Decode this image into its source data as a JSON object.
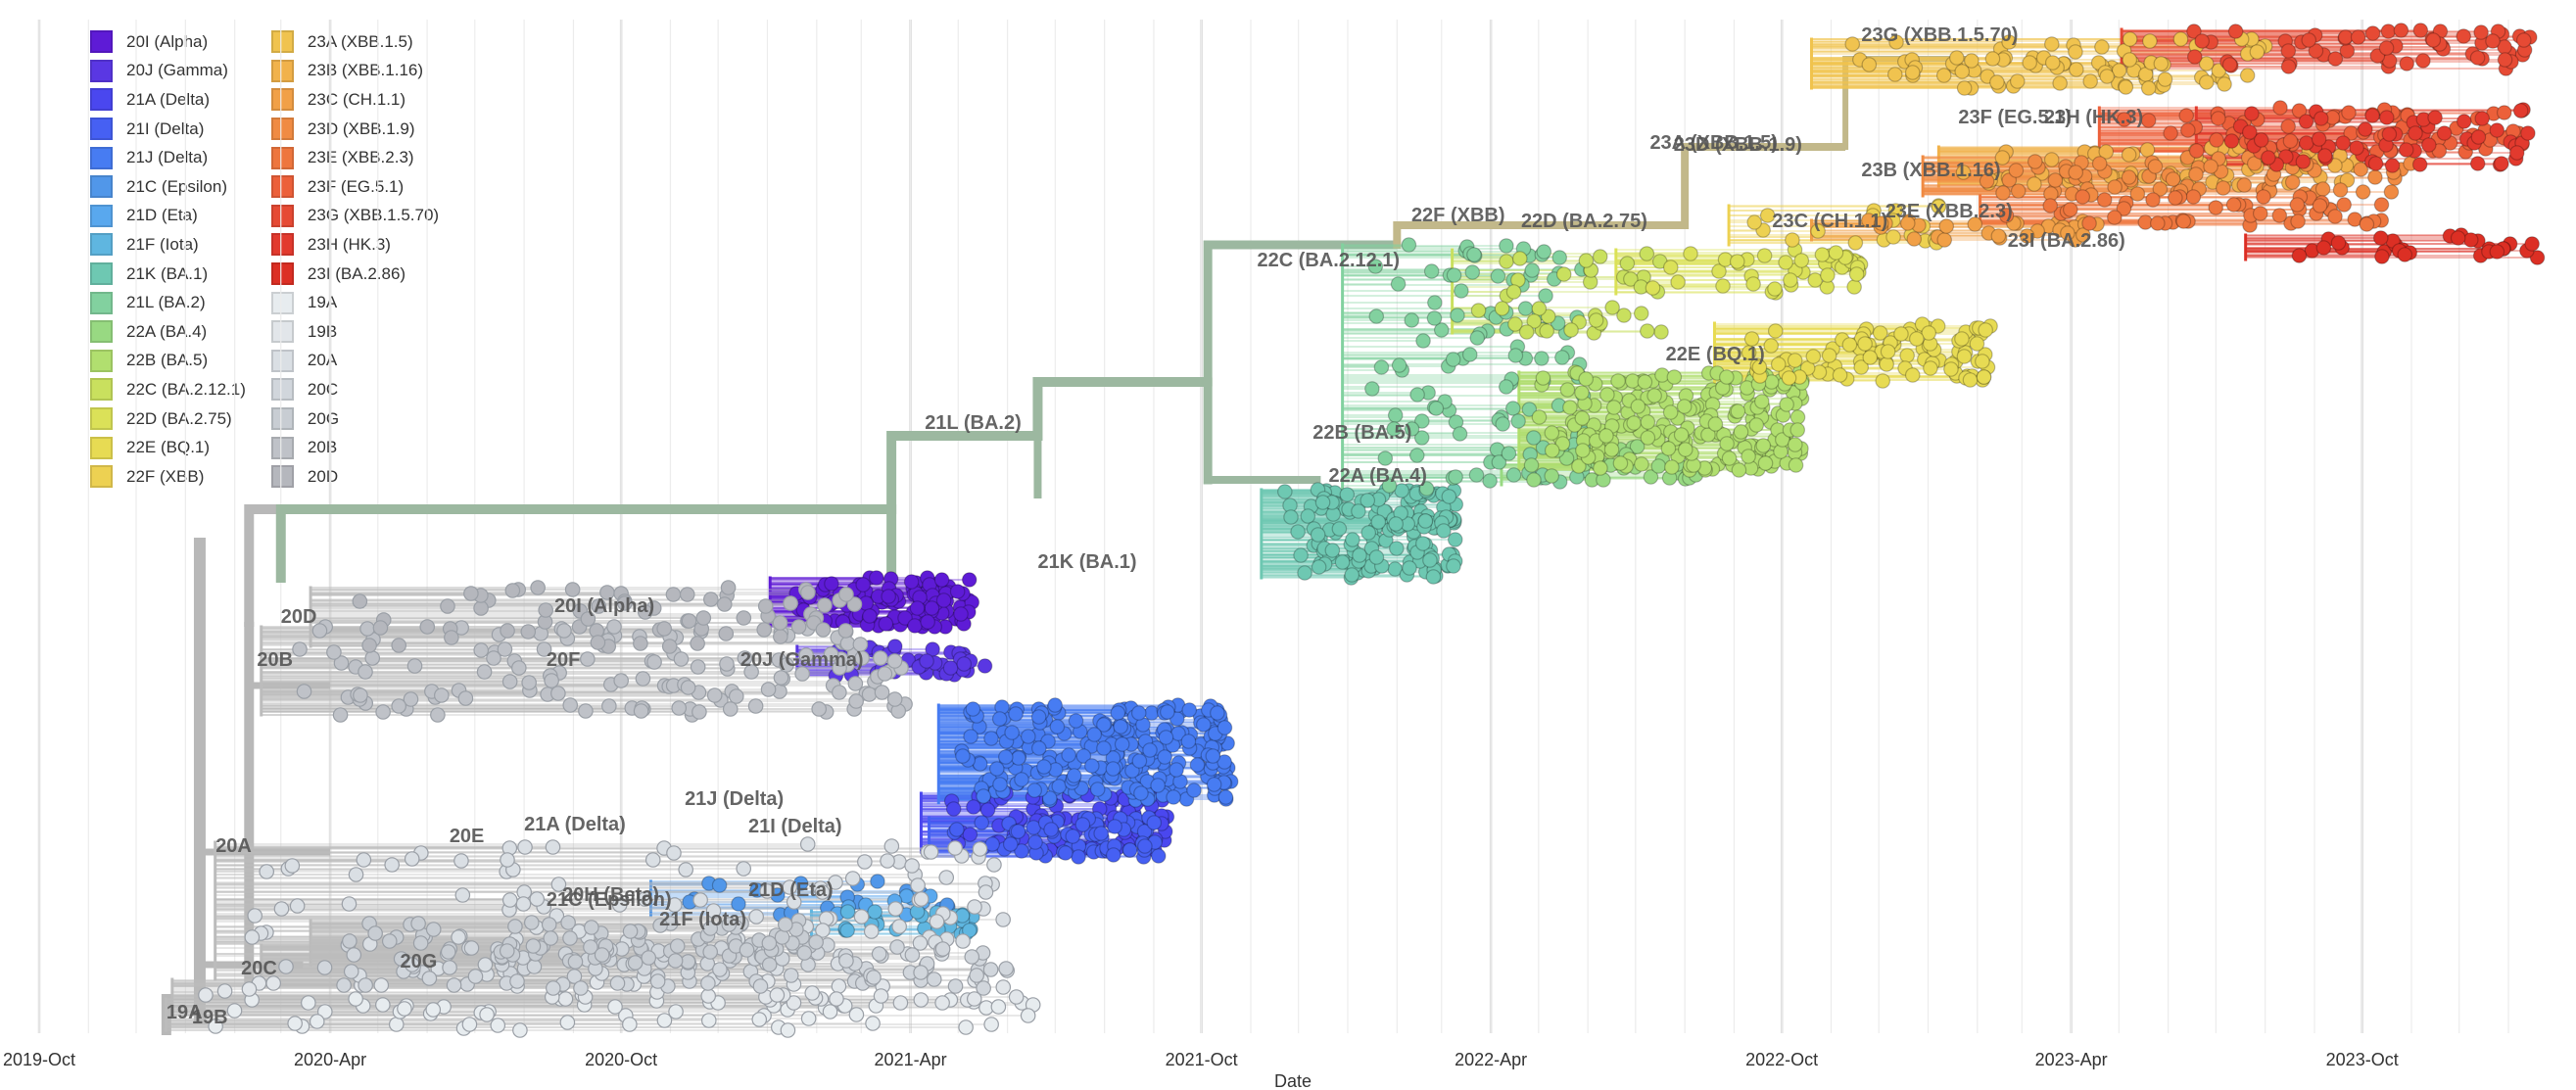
{
  "chart_data": {
    "type": "scatter",
    "title": "",
    "xlabel": "Date",
    "ylabel": "",
    "x_range": [
      "2019-10-01",
      "2024-01-25"
    ],
    "x_ticks": [
      {
        "date": "2019-10-01",
        "label": "2019-Oct"
      },
      {
        "date": "2020-04-01",
        "label": "2020-Apr"
      },
      {
        "date": "2020-10-01",
        "label": "2020-Oct"
      },
      {
        "date": "2021-04-01",
        "label": "2021-Apr"
      },
      {
        "date": "2021-10-01",
        "label": "2021-Oct"
      },
      {
        "date": "2022-04-01",
        "label": "2022-Apr"
      },
      {
        "date": "2022-10-01",
        "label": "2022-Oct"
      },
      {
        "date": "2023-04-01",
        "label": "2023-Apr"
      },
      {
        "date": "2023-10-01",
        "label": "2023-Oct"
      }
    ],
    "grid": "vertical",
    "legend_position": "top-left",
    "series": [
      {
        "name": "20I (Alpha)",
        "color": "#5e1bd6",
        "x": [
          "2021-01-15",
          "2021-05-10"
        ]
      },
      {
        "name": "20J (Gamma)",
        "color": "#5a37e3",
        "x": [
          "2021-02-01",
          "2021-05-20"
        ]
      },
      {
        "name": "21A (Delta)",
        "color": "#4a47ef",
        "x": [
          "2021-04-20",
          "2021-09-10"
        ]
      },
      {
        "name": "21I (Delta)",
        "color": "#4660f3",
        "x": [
          "2021-04-25",
          "2021-09-05"
        ]
      },
      {
        "name": "21J (Delta)",
        "color": "#477cf2",
        "x": [
          "2021-05-01",
          "2021-10-20"
        ]
      },
      {
        "name": "21C (Epsilon)",
        "color": "#5197e9",
        "x": [
          "2020-11-01",
          "2021-05-01"
        ]
      },
      {
        "name": "21D (Eta)",
        "color": "#59a8ee",
        "x": [
          "2021-02-01",
          "2021-04-20"
        ]
      },
      {
        "name": "21F (Iota)",
        "color": "#5fb6e0",
        "x": [
          "2021-02-10",
          "2021-05-15"
        ]
      },
      {
        "name": "21K (BA.1)",
        "color": "#6ec8b2",
        "x": [
          "2021-11-20",
          "2022-03-10"
        ]
      },
      {
        "name": "21L (BA.2)",
        "color": "#82d19f",
        "x": [
          "2022-01-10",
          "2022-06-01"
        ]
      },
      {
        "name": "22A (BA.4)",
        "color": "#98d982",
        "x": [
          "2022-04-20",
          "2022-08-10"
        ]
      },
      {
        "name": "22B (BA.5)",
        "color": "#b1df6f",
        "x": [
          "2022-05-01",
          "2022-10-15"
        ]
      },
      {
        "name": "22C (BA.2.12.1)",
        "color": "#c9e05e",
        "x": [
          "2022-03-20",
          "2022-07-20"
        ]
      },
      {
        "name": "22D (BA.2.75)",
        "color": "#dbe158",
        "x": [
          "2022-07-01",
          "2022-11-20"
        ]
      },
      {
        "name": "22E (BQ.1)",
        "color": "#e7db53",
        "x": [
          "2022-09-01",
          "2023-02-10"
        ]
      },
      {
        "name": "22F (XBB)",
        "color": "#edd152",
        "x": [
          "2022-09-10",
          "2023-01-10"
        ]
      },
      {
        "name": "23A (XBB.1.5)",
        "color": "#f0c34f",
        "x": [
          "2022-11-01",
          "2023-08-01"
        ]
      },
      {
        "name": "23B (XBB.1.16)",
        "color": "#f1b24b",
        "x": [
          "2023-01-20",
          "2023-10-01"
        ]
      },
      {
        "name": "23C (CH.1.1)",
        "color": "#f1a047",
        "x": [
          "2022-11-01",
          "2023-04-20"
        ]
      },
      {
        "name": "23D (XBB.1.9)",
        "color": "#f08b43",
        "x": [
          "2023-01-10",
          "2023-11-01"
        ]
      },
      {
        "name": "23E (XBB.2.3)",
        "color": "#ee763e",
        "x": [
          "2023-02-15",
          "2023-10-20"
        ]
      },
      {
        "name": "23F (EG.5.1)",
        "color": "#ec603a",
        "x": [
          "2023-05-01",
          "2024-01-10"
        ]
      },
      {
        "name": "23G (XBB.1.5.70)",
        "color": "#e64a34",
        "x": [
          "2023-05-15",
          "2024-01-15"
        ]
      },
      {
        "name": "23H (HK.3)",
        "color": "#e23a2e",
        "x": [
          "2023-07-01",
          "2024-01-20"
        ]
      },
      {
        "name": "23I (BA.2.86)",
        "color": "#dc2f24",
        "x": [
          "2023-08-01",
          "2024-01-22"
        ]
      },
      {
        "name": "19A",
        "color": "#e7ecef",
        "x": [
          "2020-01-01",
          "2021-06-20"
        ]
      },
      {
        "name": "19B",
        "color": "#e2e6ea",
        "x": [
          "2020-01-05",
          "2021-06-10"
        ]
      },
      {
        "name": "20A",
        "color": "#dadfe4",
        "x": [
          "2020-02-01",
          "2021-06-01"
        ]
      },
      {
        "name": "20C",
        "color": "#d1d6dc",
        "x": [
          "2020-03-01",
          "2021-06-01"
        ]
      },
      {
        "name": "20G",
        "color": "#c8cdd3",
        "x": [
          "2020-04-01",
          "2021-02-01"
        ]
      },
      {
        "name": "20B",
        "color": "#bfc2c8",
        "x": [
          "2020-03-01",
          "2021-04-01"
        ]
      },
      {
        "name": "20D",
        "color": "#b5b7bd",
        "x": [
          "2020-04-01",
          "2021-03-01"
        ]
      }
    ],
    "clade_labels": [
      {
        "label": "19A",
        "date": "2019-12-20"
      },
      {
        "label": "19B",
        "date": "2020-01-05"
      },
      {
        "label": "20A",
        "date": "2020-01-20"
      },
      {
        "label": "20B",
        "date": "2020-02-15"
      },
      {
        "label": "20C",
        "date": "2020-02-05"
      },
      {
        "label": "20D",
        "date": "2020-03-01"
      },
      {
        "label": "20E",
        "date": "2020-06-15"
      },
      {
        "label": "20F",
        "date": "2020-08-15"
      },
      {
        "label": "20G",
        "date": "2020-05-15"
      },
      {
        "label": "20H (Beta)",
        "date": "2020-08-25"
      },
      {
        "label": "20I (Alpha)",
        "date": "2020-08-20"
      },
      {
        "label": "20J (Gamma)",
        "date": "2020-12-15"
      },
      {
        "label": "21A (Delta)",
        "date": "2020-08-01"
      },
      {
        "label": "21C (Epsilon)",
        "date": "2020-08-15"
      },
      {
        "label": "21D (Eta)",
        "date": "2020-12-20"
      },
      {
        "label": "21F (Iota)",
        "date": "2020-10-25"
      },
      {
        "label": "21I (Delta)",
        "date": "2020-12-20"
      },
      {
        "label": "21J (Delta)",
        "date": "2020-11-10"
      },
      {
        "label": "21K (BA.1)",
        "date": "2021-06-20"
      },
      {
        "label": "21L (BA.2)",
        "date": "2021-04-10"
      },
      {
        "label": "22A (BA.4)",
        "date": "2021-12-20"
      },
      {
        "label": "22B (BA.5)",
        "date": "2021-12-10"
      },
      {
        "label": "22C (BA.2.12.1)",
        "date": "2021-11-05"
      },
      {
        "label": "22D (BA.2.75)",
        "date": "2022-04-20"
      },
      {
        "label": "22E (BQ.1)",
        "date": "2022-07-20"
      },
      {
        "label": "22F (XBB)",
        "date": "2022-02-10"
      },
      {
        "label": "23A (XBB.1.5)",
        "date": "2022-07-10"
      },
      {
        "label": "23B (XBB.1.16)",
        "date": "2022-11-20"
      },
      {
        "label": "23C (CH.1.1)",
        "date": "2022-09-25"
      },
      {
        "label": "23D (XBB.1.9)",
        "date": "2022-07-25"
      },
      {
        "label": "23E (XBB.2.3)",
        "date": "2022-12-05"
      },
      {
        "label": "23F (EG.5.1)",
        "date": "2023-01-20"
      },
      {
        "label": "23G (XBB.1.5.70)",
        "date": "2022-11-20"
      },
      {
        "label": "23H (HK.3)",
        "date": "2023-03-15"
      },
      {
        "label": "23I (BA.2.86)",
        "date": "2023-02-20"
      }
    ]
  }
}
